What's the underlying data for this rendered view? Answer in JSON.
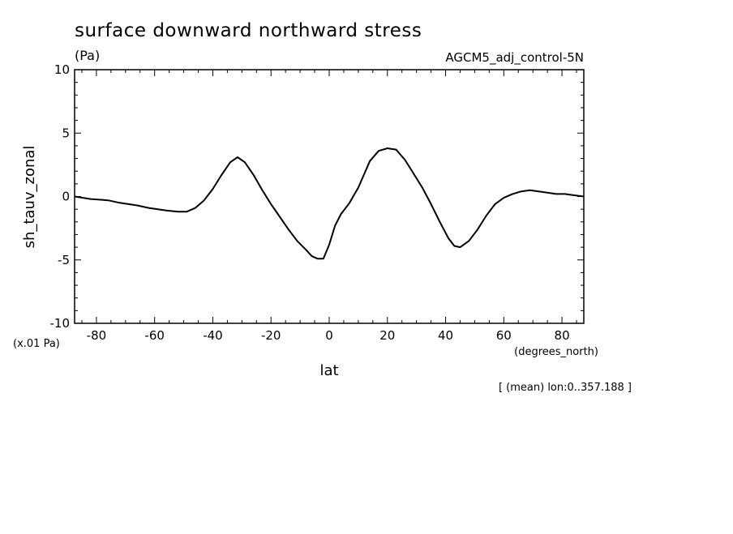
{
  "chart_data": {
    "type": "line",
    "title": "surface downward northward stress",
    "subtitle_units": "(Pa)",
    "run_label": "AGCM5_adj_control-5N",
    "ylabel": "sh_tauv_zonal",
    "xlabel": "lat",
    "x_units": "(degrees_north)",
    "y_scale_note": "(x.01 Pa)",
    "footnote": "[ (mean) lon:0..357.188 ]",
    "xlim": [
      -87.5,
      87.5
    ],
    "ylim": [
      -10,
      10
    ],
    "x_ticks": [
      -80,
      -60,
      -40,
      -20,
      0,
      20,
      40,
      60,
      80
    ],
    "y_ticks": [
      -10,
      -5,
      0,
      5,
      10
    ],
    "x_tick_labels": [
      "-80",
      "-60",
      "-40",
      "-20",
      "0",
      "20",
      "40",
      "60",
      "80"
    ],
    "y_tick_labels": [
      "-10",
      "-5",
      "0",
      "5",
      "10"
    ],
    "grid": false,
    "series": [
      {
        "color": "#000000",
        "x": [
          -87.5,
          -82,
          -76,
          -72,
          -66,
          -62,
          -56,
          -52,
          -49,
          -46,
          -43,
          -40,
          -37,
          -34,
          -31.5,
          -29,
          -26,
          -23,
          -20,
          -17,
          -14,
          -11,
          -8,
          -6,
          -4,
          -2,
          0,
          2,
          4,
          7,
          10,
          14,
          17,
          20,
          23,
          26,
          29,
          32,
          35,
          38,
          41,
          43,
          45,
          48,
          51,
          54,
          57,
          60,
          63,
          66,
          69,
          72,
          75,
          78,
          81,
          84,
          87.5
        ],
        "y": [
          0,
          -0.2,
          -0.3,
          -0.5,
          -0.7,
          -0.9,
          -1.1,
          -1.2,
          -1.2,
          -0.9,
          -0.3,
          0.6,
          1.7,
          2.7,
          3.1,
          2.7,
          1.7,
          0.5,
          -0.6,
          -1.6,
          -2.6,
          -3.5,
          -4.2,
          -4.7,
          -4.9,
          -4.9,
          -3.8,
          -2.3,
          -1.4,
          -0.5,
          0.7,
          2.8,
          3.6,
          3.8,
          3.7,
          2.9,
          1.8,
          0.7,
          -0.6,
          -2.0,
          -3.3,
          -3.9,
          -4.0,
          -3.5,
          -2.6,
          -1.5,
          -0.6,
          -0.1,
          0.2,
          0.4,
          0.5,
          0.4,
          0.3,
          0.2,
          0.2,
          0.1,
          0
        ]
      }
    ]
  }
}
